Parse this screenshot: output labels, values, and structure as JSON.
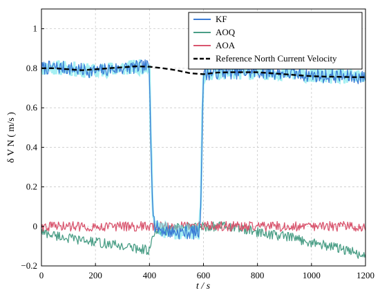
{
  "chart_data": {
    "type": "line",
    "xlabel": "t / s",
    "ylabel": "δ V N ( m/s )",
    "xlim": [
      0,
      1200
    ],
    "ylim": [
      -0.2,
      1.1
    ],
    "x_ticks": [
      0,
      200,
      400,
      600,
      800,
      1000,
      1200
    ],
    "y_ticks": [
      -0.2,
      0,
      0.2,
      0.4,
      0.6,
      0.8,
      1
    ],
    "y_tick_labels": [
      "−0.2",
      "0",
      "0.2",
      "0.4",
      "0.6",
      "0.8",
      "1"
    ],
    "grid": true,
    "legend": "top-right",
    "series": [
      {
        "name": "KF",
        "color": "#3a7bd5",
        "band_color": "#5ce3e8",
        "points": [
          [
            0,
            0.8
          ],
          [
            50,
            0.805
          ],
          [
            100,
            0.8
          ],
          [
            150,
            0.79
          ],
          [
            200,
            0.785
          ],
          [
            250,
            0.795
          ],
          [
            300,
            0.8
          ],
          [
            350,
            0.805
          ],
          [
            395,
            0.81
          ],
          [
            400,
            0.78
          ],
          [
            405,
            0.45
          ],
          [
            410,
            0.2
          ],
          [
            415,
            0.05
          ],
          [
            420,
            0.0
          ],
          [
            450,
            -0.02
          ],
          [
            500,
            -0.03
          ],
          [
            550,
            -0.03
          ],
          [
            585,
            -0.03
          ],
          [
            590,
            0.1
          ],
          [
            595,
            0.5
          ],
          [
            600,
            0.77
          ],
          [
            650,
            0.78
          ],
          [
            700,
            0.78
          ],
          [
            750,
            0.78
          ],
          [
            800,
            0.78
          ],
          [
            850,
            0.78
          ],
          [
            900,
            0.775
          ],
          [
            950,
            0.77
          ],
          [
            1000,
            0.765
          ],
          [
            1050,
            0.76
          ],
          [
            1100,
            0.76
          ],
          [
            1150,
            0.755
          ],
          [
            1200,
            0.755
          ]
        ],
        "noise": 0.035
      },
      {
        "name": "AOQ",
        "color": "#4a9e86",
        "points": [
          [
            0,
            -0.03
          ],
          [
            100,
            -0.06
          ],
          [
            200,
            -0.08
          ],
          [
            300,
            -0.1
          ],
          [
            400,
            -0.12
          ],
          [
            420,
            -0.03
          ],
          [
            500,
            -0.01
          ],
          [
            600,
            0.0
          ],
          [
            700,
            0.0
          ],
          [
            800,
            -0.03
          ],
          [
            900,
            -0.05
          ],
          [
            1000,
            -0.08
          ],
          [
            1100,
            -0.11
          ],
          [
            1200,
            -0.15
          ]
        ],
        "noise": 0.025
      },
      {
        "name": "AOA",
        "color": "#d9556e",
        "points": [
          [
            0,
            0.0
          ],
          [
            200,
            0.0
          ],
          [
            400,
            0.0
          ],
          [
            600,
            0.0
          ],
          [
            800,
            0.0
          ],
          [
            1000,
            0.0
          ],
          [
            1200,
            0.0
          ]
        ],
        "noise": 0.025
      },
      {
        "name": "Reference North Current Velocity",
        "color": "#000000",
        "dashed": true,
        "points": [
          [
            0,
            0.8
          ],
          [
            50,
            0.8
          ],
          [
            100,
            0.795
          ],
          [
            150,
            0.79
          ],
          [
            200,
            0.795
          ],
          [
            250,
            0.8
          ],
          [
            300,
            0.805
          ],
          [
            350,
            0.81
          ],
          [
            400,
            0.808
          ],
          [
            450,
            0.8
          ],
          [
            500,
            0.79
          ],
          [
            550,
            0.775
          ],
          [
            600,
            0.77
          ],
          [
            650,
            0.778
          ],
          [
            700,
            0.78
          ],
          [
            750,
            0.78
          ],
          [
            800,
            0.78
          ],
          [
            850,
            0.775
          ],
          [
            900,
            0.77
          ],
          [
            950,
            0.765
          ],
          [
            1000,
            0.76
          ],
          [
            1050,
            0.758
          ],
          [
            1100,
            0.757
          ],
          [
            1150,
            0.755
          ],
          [
            1200,
            0.755
          ]
        ]
      }
    ]
  }
}
